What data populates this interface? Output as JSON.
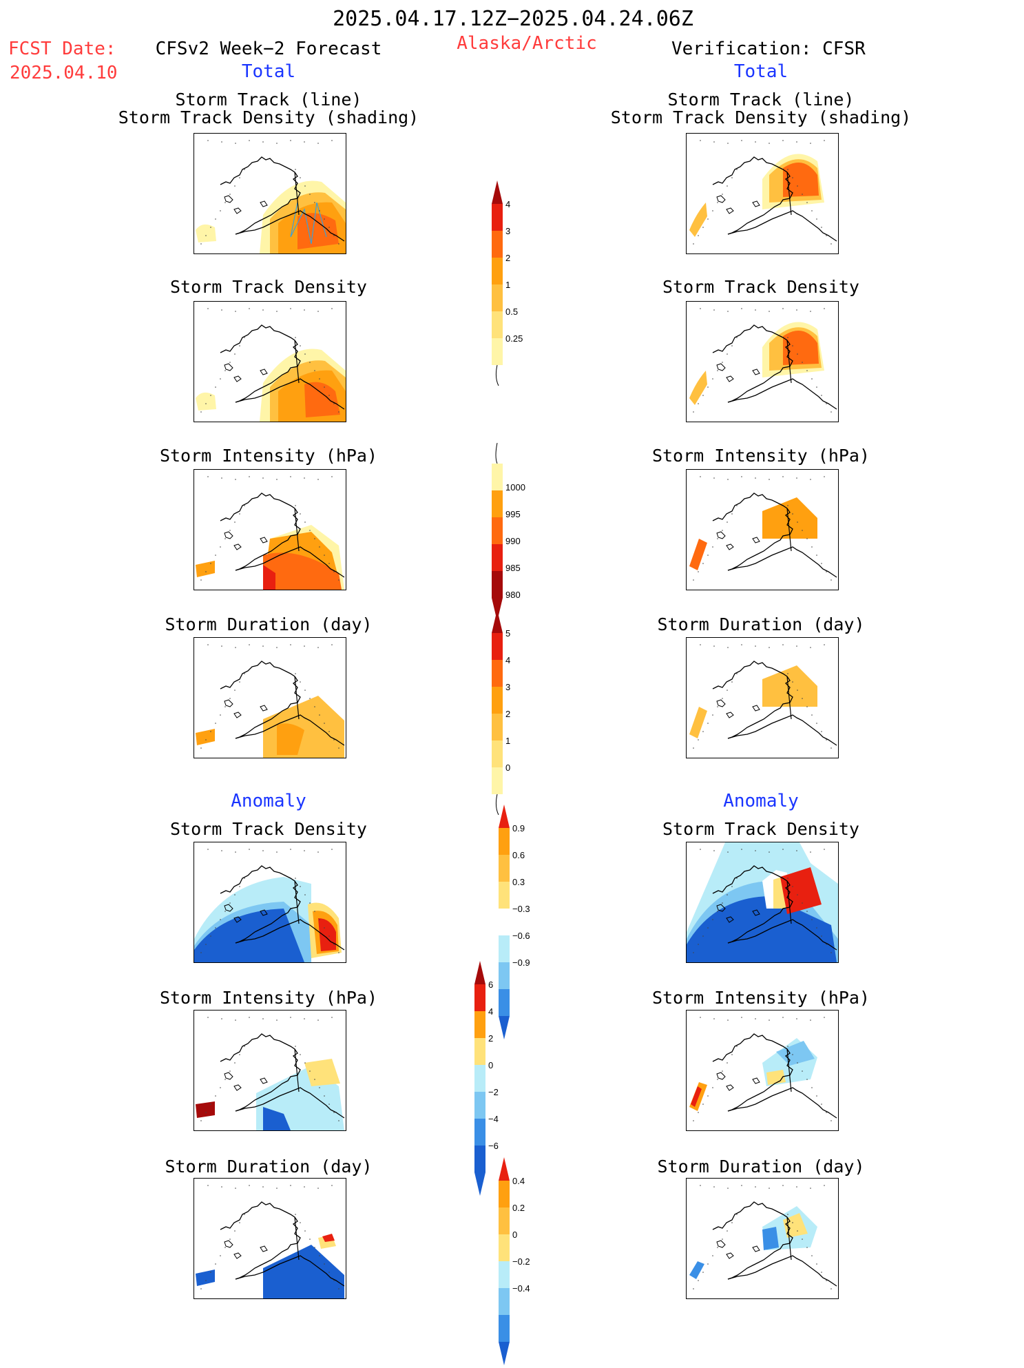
{
  "header": {
    "period": "2025.04.17.12Z−2025.04.24.06Z",
    "fcst_label": "FCST Date:",
    "fcst_date": "2025.04.10",
    "forecast_title": "CFSv2 Week−2 Forecast",
    "region": "Alaska/Arctic",
    "verification_title": "Verification: CFSR",
    "left_total": "Total",
    "right_total": "Total",
    "left_anomaly": "Anomaly",
    "right_anomaly": "Anomaly"
  },
  "panels": {
    "track_line_1": "Storm Track (line)",
    "track_line_2": "Storm Track Density (shading)",
    "density": "Storm Track Density",
    "intensity": "Storm Intensity (hPa)",
    "duration": "Storm Duration (day)"
  },
  "colorbars": {
    "density": [
      "4",
      "3",
      "2",
      "1",
      "0.5",
      "0.25"
    ],
    "intensity": [
      "1000",
      "995",
      "990",
      "985",
      "980"
    ],
    "duration": [
      "5",
      "4",
      "3",
      "2",
      "1",
      "0"
    ],
    "density_anom": [
      "0.9",
      "0.6",
      "0.3",
      "−0.3",
      "−0.6",
      "−0.9"
    ],
    "intensity_anom": [
      "6",
      "4",
      "2",
      "0",
      "−2",
      "−4",
      "−6"
    ],
    "duration_anom": [
      "0.4",
      "0.2",
      "0",
      "−0.2",
      "−0.4"
    ]
  },
  "colors": {
    "title_red": "#ff3b3b",
    "label_blue": "#1a35ff",
    "pale_yellow": "#fff5a8",
    "light_yellow": "#ffe27a",
    "light_orange": "#ffc040",
    "orange": "#ffa010",
    "dark_orange": "#ff6a10",
    "red": "#e82010",
    "dark_red": "#a50a0a",
    "pale_blue": "#b8ecf8",
    "light_blue": "#7dc7f2",
    "blue": "#3a8fe6",
    "dark_blue": "#1a5fd0"
  }
}
